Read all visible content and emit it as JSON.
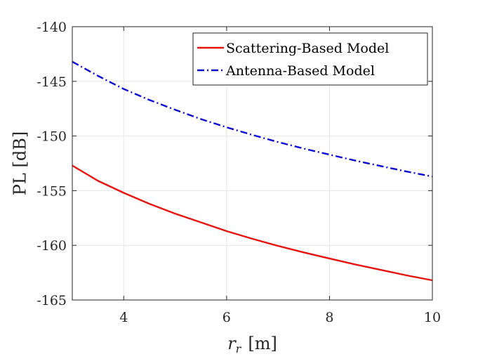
{
  "chart_data": {
    "type": "line",
    "title": "",
    "xlabel": "r_r [m]",
    "xlabel_main": "r",
    "xlabel_sub": "r",
    "xlabel_unit": "[m]",
    "ylabel": "PL [dB]",
    "xlim": [
      3,
      10
    ],
    "ylim": [
      -165,
      -140
    ],
    "xticks": [
      4,
      6,
      8,
      10
    ],
    "xtick_labels": [
      "4",
      "6",
      "8",
      "10"
    ],
    "yticks": [
      -165,
      -160,
      -155,
      -150,
      -145,
      -140
    ],
    "ytick_labels": [
      "-165",
      "-160",
      "-155",
      "-150",
      "-145",
      "-140"
    ],
    "grid": true,
    "legend_location": "top-right",
    "x": [
      3,
      3.5,
      4,
      4.5,
      5,
      5.5,
      6,
      6.5,
      7,
      7.5,
      8,
      8.5,
      9,
      9.5,
      10
    ],
    "series": [
      {
        "name": "Scattering-Based Model",
        "color": "#e8120c",
        "style": "solid",
        "values": [
          -152.7,
          -154.1,
          -155.2,
          -156.2,
          -157.1,
          -157.9,
          -158.7,
          -159.4,
          -160.05,
          -160.65,
          -161.2,
          -161.75,
          -162.25,
          -162.75,
          -163.2
        ]
      },
      {
        "name": "Antenna-Based Model",
        "color": "#0a0ad6",
        "style": "dashdot",
        "values": [
          -143.2,
          -144.5,
          -145.7,
          -146.7,
          -147.6,
          -148.45,
          -149.2,
          -149.9,
          -150.55,
          -151.15,
          -151.7,
          -152.25,
          -152.75,
          -153.25,
          -153.7
        ]
      }
    ]
  }
}
